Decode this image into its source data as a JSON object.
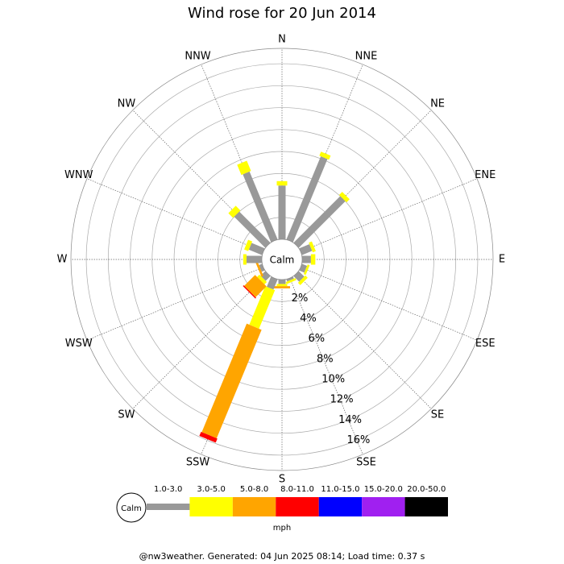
{
  "chart_data": {
    "type": "windrose",
    "title": "Wind rose for 20 Jun 2014",
    "categories": [
      "N",
      "NNE",
      "NE",
      "ENE",
      "E",
      "ESE",
      "SE",
      "SSE",
      "S",
      "SSW",
      "SW",
      "WSW",
      "W",
      "WNW",
      "NW",
      "NNW"
    ],
    "series": [
      {
        "name": "1.0-3.0",
        "color": "#999999",
        "values": [
          4.9,
          8.2,
          6.0,
          1.0,
          0.8,
          0.5,
          0.7,
          0.2,
          0.4,
          1.0,
          0.6,
          0.3,
          1.4,
          1.3,
          4.0,
          6.7
        ]
      },
      {
        "name": "3.0-5.0",
        "color": "#ffff00",
        "values": [
          0.4,
          0.4,
          0.4,
          0.3,
          0.4,
          0.2,
          0.3,
          0.2,
          0.2,
          3.8,
          0.3,
          0,
          0.3,
          0.4,
          0.6,
          1.0
        ]
      },
      {
        "name": "5.0-8.0",
        "color": "#ffa500",
        "values": [
          0,
          0,
          0,
          0,
          0,
          0,
          0,
          0,
          0.2,
          10.7,
          1.4,
          0.2,
          0,
          0,
          0,
          0
        ]
      },
      {
        "name": "8.0-11.0",
        "color": "#ff0000",
        "values": [
          0,
          0,
          0,
          0,
          0,
          0,
          0,
          0,
          0,
          0.4,
          0.1,
          0,
          0,
          0,
          0,
          0
        ]
      },
      {
        "name": "11.0-15.0",
        "color": "#0000ff",
        "values": [
          0,
          0,
          0,
          0,
          0,
          0,
          0,
          0,
          0,
          0,
          0,
          0,
          0,
          0,
          0,
          0
        ]
      },
      {
        "name": "15.0-20.0",
        "color": "#a020f0",
        "values": [
          0,
          0,
          0,
          0,
          0,
          0,
          0,
          0,
          0,
          0,
          0,
          0,
          0,
          0,
          0,
          0
        ]
      },
      {
        "name": "20.0-50.0",
        "color": "#000000",
        "values": [
          0,
          0,
          0,
          0,
          0,
          0,
          0,
          0,
          0,
          0,
          0,
          0,
          0,
          0,
          0,
          0
        ]
      }
    ],
    "rlim": [
      0,
      17.4
    ],
    "rticks": [
      {
        "value": 2,
        "label": "2%"
      },
      {
        "value": 4,
        "label": "4%"
      },
      {
        "value": 6,
        "label": "6%"
      },
      {
        "value": 8,
        "label": "8%"
      },
      {
        "value": 10,
        "label": "10%"
      },
      {
        "value": 12,
        "label": "12%"
      },
      {
        "value": 14,
        "label": "14%"
      },
      {
        "value": 16,
        "label": "16%"
      }
    ],
    "calm_label": "Calm",
    "legend_unit": "mph",
    "footer": "@nw3weather. Generated: 04 Jun 2025 08:14; Load time: 0.37 s"
  }
}
